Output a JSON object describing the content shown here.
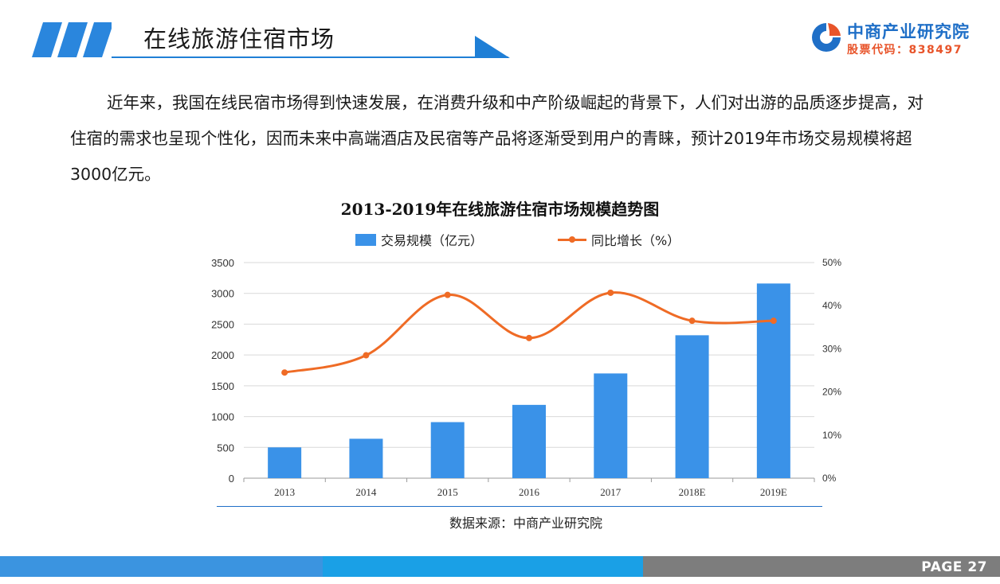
{
  "header": {
    "title": "在线旅游住宿市场"
  },
  "logo": {
    "name": "中商产业研究院",
    "code": "股票代码：838497"
  },
  "intro": "近年来，我国在线民宿市场得到快速发展，在消费升级和中产阶级崛起的背景下，人们对出游的品质逐步提高，对住宿的需求也呈现个性化，因而未来中高端酒店及民宿等产品将逐渐受到用户的青睐，预计2019年市场交易规模将超3000亿元。",
  "source": "数据来源：中商产业研究院",
  "footer": {
    "page_label": "PAGE  27"
  },
  "colors": {
    "bar": "#3a92e8",
    "line": "#ef6b25",
    "accent": "#1f7fd6"
  },
  "chart_data": {
    "type": "bar",
    "title": "2013-2019年在线旅游住宿市场规模趋势图",
    "categories": [
      "2013",
      "2014",
      "2015",
      "2016",
      "2017",
      "2018E",
      "2019E"
    ],
    "series": [
      {
        "name": "交易规模（亿元）",
        "type": "bar",
        "axis": "left",
        "values": [
          500,
          640,
          910,
          1190,
          1700,
          2320,
          3160
        ]
      },
      {
        "name": "同比增长（%）",
        "type": "line",
        "axis": "right",
        "values": [
          24.5,
          28.5,
          42.5,
          32.5,
          43,
          36.5,
          36.5
        ]
      }
    ],
    "left_axis": {
      "ylim": [
        0,
        3500
      ],
      "ticks": [
        "0",
        "500",
        "1000",
        "1500",
        "2000",
        "2500",
        "3000",
        "3500"
      ]
    },
    "right_axis": {
      "ylim": [
        0,
        50
      ],
      "ticks": [
        "0%",
        "10%",
        "20%",
        "30%",
        "40%",
        "50%"
      ]
    },
    "legend_position": "top-center",
    "grid": true
  }
}
